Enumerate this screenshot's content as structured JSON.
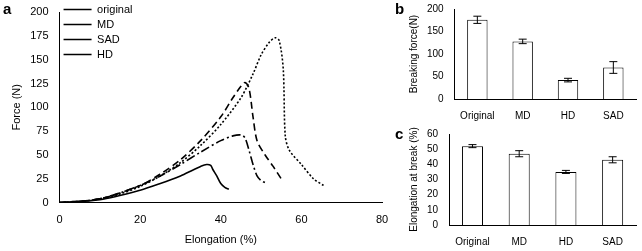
{
  "chart_data": [
    {
      "type": "line",
      "title": "a",
      "x_label": "Elongation (%)",
      "y_label": "Force (N)",
      "xlim": [
        0,
        80
      ],
      "xticks": [
        0,
        20,
        40,
        60,
        80
      ],
      "ylim": [
        0,
        200
      ],
      "yticks": [
        0,
        25,
        50,
        75,
        100,
        125,
        150,
        175,
        200
      ],
      "grid": false,
      "legend": "upper left",
      "series": [
        {
          "name": "original",
          "color": "#000000",
          "line_style": "dotted",
          "x": [
            0,
            5,
            10,
            15,
            20,
            25,
            30,
            35,
            40,
            45,
            48,
            50,
            52,
            53.5,
            54.5,
            55.5,
            56,
            57,
            60,
            63,
            65.5
          ],
          "values": [
            0,
            1,
            4,
            9,
            17,
            28,
            42,
            60,
            82,
            110,
            135,
            155,
            168,
            173,
            170,
            140,
            70,
            55,
            40,
            25,
            18
          ]
        },
        {
          "name": "MD",
          "color": "#000000",
          "line_style": "dashed",
          "x": [
            0,
            10,
            20,
            25,
            30,
            35,
            40,
            43,
            45,
            46,
            47,
            48,
            49,
            51,
            53,
            55
          ],
          "values": [
            0,
            4,
            18,
            30,
            45,
            65,
            90,
            110,
            122,
            126,
            120,
            90,
            65,
            50,
            38,
            25
          ]
        },
        {
          "name": "SAD",
          "color": "#000000",
          "line_style": "dashdot",
          "x": [
            0,
            10,
            20,
            25,
            30,
            35,
            40,
            43,
            45,
            46,
            47,
            48,
            49,
            50,
            51
          ],
          "values": [
            0,
            4,
            18,
            28,
            40,
            53,
            65,
            70,
            71,
            68,
            55,
            40,
            28,
            23,
            21
          ]
        },
        {
          "name": "HD",
          "color": "#000000",
          "line_style": "solid",
          "x": [
            0,
            10,
            20,
            25,
            30,
            33,
            35,
            36.5,
            37.5,
            38,
            39,
            40,
            41,
            42
          ],
          "values": [
            0,
            3,
            13,
            20,
            28,
            34,
            38,
            40,
            39,
            35,
            28,
            20,
            16,
            14
          ]
        }
      ]
    },
    {
      "type": "bar",
      "title": "b",
      "y_label": "Breaking force(N)",
      "categories": [
        "Original",
        "MD",
        "HD",
        "SAD"
      ],
      "values": [
        176,
        128,
        42,
        70
      ],
      "errors": [
        8,
        5,
        4,
        13
      ],
      "color": "#ffffff",
      "ylim": [
        0,
        200
      ],
      "yticks": [
        0,
        50,
        100,
        150,
        200
      ],
      "grid": false
    },
    {
      "type": "bar",
      "title": "c",
      "y_label": "Elongation at break (%)",
      "categories": [
        "Original",
        "MD",
        "HD",
        "SAD"
      ],
      "values": [
        52,
        47,
        35,
        43
      ],
      "errors": [
        1,
        2,
        1,
        2
      ],
      "color": "#ffffff",
      "ylim": [
        0,
        60
      ],
      "yticks": [
        0,
        10,
        20,
        30,
        40,
        50,
        60
      ],
      "grid": false
    }
  ]
}
